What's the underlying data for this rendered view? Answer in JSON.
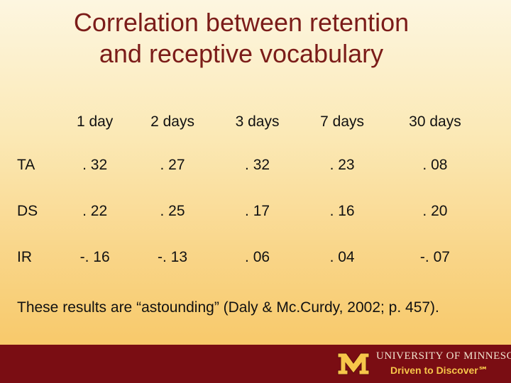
{
  "slide": {
    "title_line1": "Correlation between retention",
    "title_line2": "and receptive vocabulary"
  },
  "table": {
    "headers": [
      "",
      "1 day",
      "2 days",
      "3 days",
      "7 days",
      "30 days"
    ],
    "rows": [
      {
        "label": "TA",
        "values": [
          ". 32",
          ". 27",
          ". 32",
          ". 23",
          ". 08"
        ]
      },
      {
        "label": "DS",
        "values": [
          ". 22",
          ". 25",
          ". 17",
          ". 16",
          ". 20"
        ]
      },
      {
        "label": "IR",
        "values": [
          "-. 16",
          "-. 13",
          ". 06",
          ". 04",
          "-. 07"
        ]
      }
    ]
  },
  "note": "These results are “astounding” (Daly & Mc.Curdy, 2002; p. 457).",
  "footer": {
    "university": "UNIVERSITY OF MINNESOTA",
    "tagline": "Driven to Discover℠",
    "colors": {
      "maroon": "#7a0d13",
      "gold": "#f7c64a"
    }
  }
}
